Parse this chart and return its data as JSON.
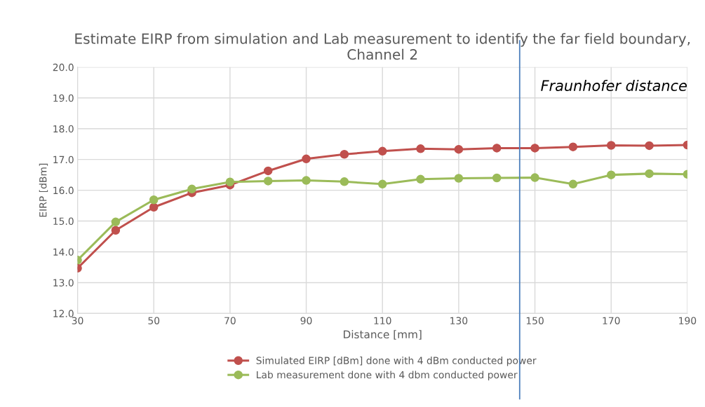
{
  "chart_data": {
    "type": "line",
    "title": "Estimate EIRP from simulation and Lab measurement to identify the far field boundary, Channel 2",
    "xlabel": "Distance [mm]",
    "ylabel": "EIRP [dBm]",
    "x": [
      30,
      40,
      50,
      60,
      70,
      80,
      90,
      100,
      110,
      120,
      130,
      140,
      150,
      160,
      170,
      180,
      190
    ],
    "series": [
      {
        "name": "Simulated EIRP [dBm] done with 4 dBm conducted power",
        "color": "#c0504d",
        "values": [
          13.47,
          14.7,
          15.45,
          15.92,
          16.17,
          16.63,
          17.02,
          17.17,
          17.27,
          17.35,
          17.33,
          17.37,
          17.37,
          17.41,
          17.46,
          17.45,
          17.47
        ]
      },
      {
        "name": "Lab measurement done with 4 dbm conducted power",
        "color": "#9bbb59",
        "values": [
          13.73,
          14.97,
          15.69,
          16.04,
          16.27,
          16.3,
          16.32,
          16.28,
          16.2,
          16.36,
          16.39,
          16.4,
          16.41,
          16.2,
          16.5,
          16.54,
          16.52
        ]
      }
    ],
    "xlim": [
      30,
      190
    ],
    "xticks": [
      30,
      50,
      70,
      90,
      110,
      130,
      150,
      170,
      190
    ],
    "ylim": [
      12,
      20
    ],
    "yticks": [
      {
        "value": 12,
        "label": "12.0"
      },
      {
        "value": 13,
        "label": "13.0"
      },
      {
        "value": 14,
        "label": "14.0"
      },
      {
        "value": 15,
        "label": "15.0"
      },
      {
        "value": 16,
        "label": "16.0"
      },
      {
        "value": 17,
        "label": "17.0"
      },
      {
        "value": 18,
        "label": "18.0"
      },
      {
        "value": 19,
        "label": "19.0"
      },
      {
        "value": 20,
        "label": "20.0"
      }
    ],
    "ref_lines": [
      {
        "axis": "x",
        "value": 146,
        "label": "Fraunhofer distance",
        "color": "#4f81bd"
      }
    ],
    "grid": true,
    "legend": "bottom",
    "marker": "circle",
    "line_style": "solid"
  }
}
